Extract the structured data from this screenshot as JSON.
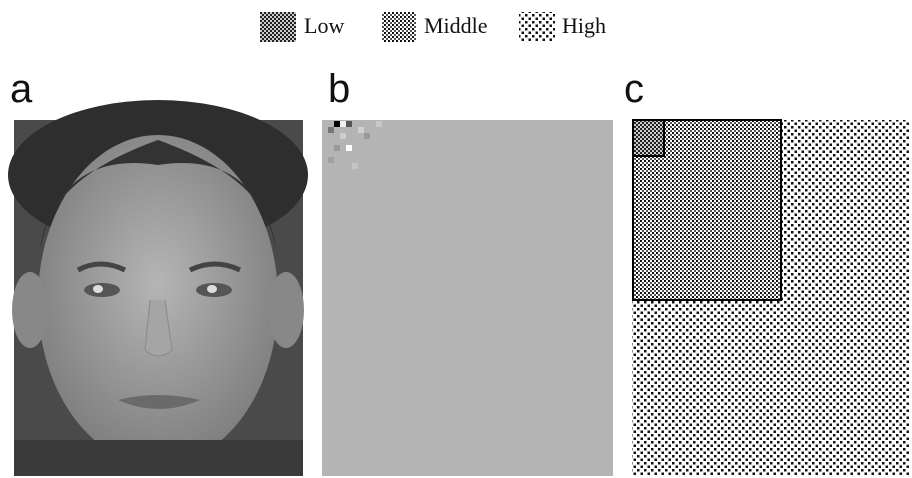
{
  "legend": [
    {
      "label": "Low"
    },
    {
      "label": "Middle"
    },
    {
      "label": "High"
    }
  ],
  "panels": [
    {
      "label": "a"
    },
    {
      "label": "b"
    },
    {
      "label": "c"
    }
  ]
}
